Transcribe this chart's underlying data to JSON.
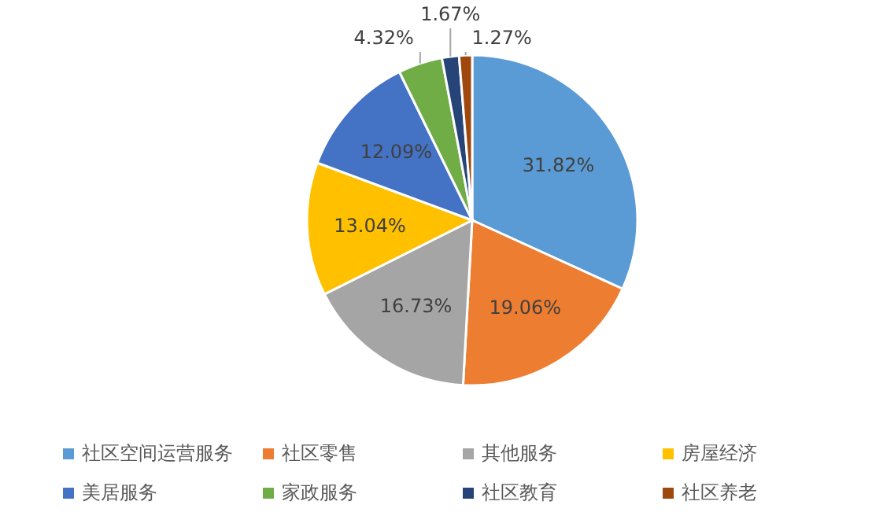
{
  "chart_data": {
    "type": "pie",
    "data_labels": true,
    "legend": "bottom",
    "categories": [
      "社区空间运营服务",
      "社区零售",
      "其他服务",
      "房屋经济",
      "美居服务",
      "家政服务",
      "社区教育",
      "社区养老"
    ],
    "values": [
      31.82,
      19.06,
      16.73,
      13.04,
      12.09,
      4.32,
      1.67,
      1.27
    ],
    "value_labels": [
      "31.82%",
      "19.06%",
      "16.73%",
      "13.04%",
      "12.09%",
      "4.32%",
      "1.67%",
      "1.27%"
    ],
    "colors": [
      "#5b9bd5",
      "#ed7d31",
      "#a5a5a5",
      "#ffc000",
      "#4472c4",
      "#70ad47",
      "#264478",
      "#9e480e"
    ]
  }
}
